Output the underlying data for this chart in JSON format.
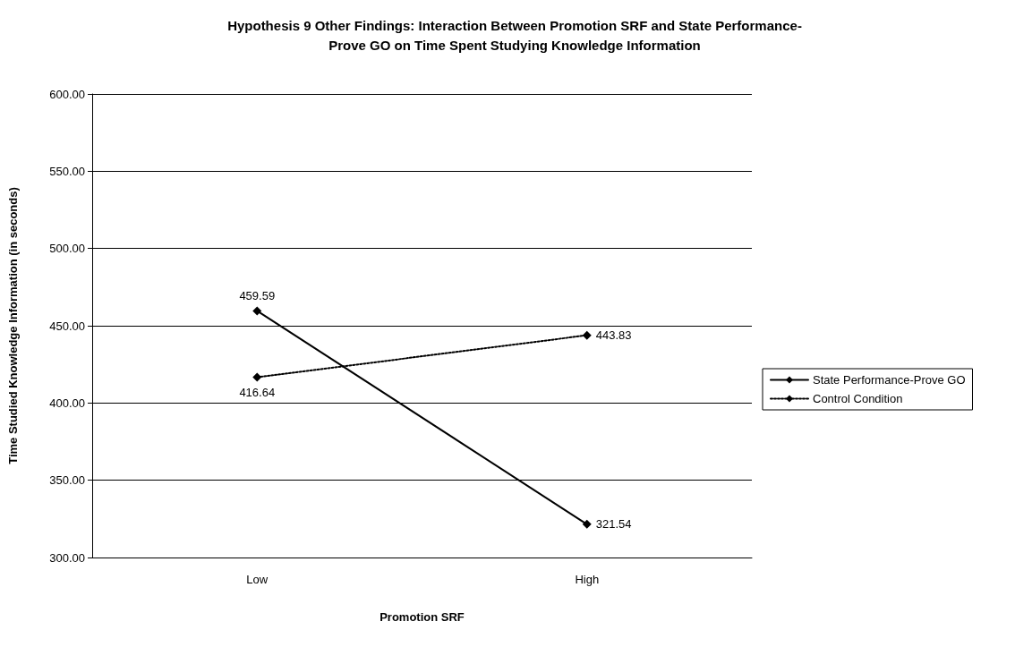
{
  "chart_data": {
    "type": "line",
    "title": "Hypothesis 9 Other Findings: Interaction Between Promotion SRF and State Performance-\nProve GO on Time Spent Studying Knowledge Information",
    "xlabel": "Promotion SRF",
    "ylabel": "Time Studied Knowledge Information (in seconds)",
    "categories": [
      "Low",
      "High"
    ],
    "series": [
      {
        "name": "State Performance-Prove GO",
        "color": "#000000",
        "values": [
          459.59,
          321.54
        ],
        "line_style": "solid"
      },
      {
        "name": "Control Condition",
        "color": "#000000",
        "values": [
          416.64,
          443.83
        ],
        "line_style": "dotted"
      }
    ],
    "ylim": [
      300,
      600
    ],
    "yticks": [
      {
        "value": 300,
        "label": "300.00"
      },
      {
        "value": 350,
        "label": "350.00"
      },
      {
        "value": 400,
        "label": "400.00"
      },
      {
        "value": 450,
        "label": "450.00"
      },
      {
        "value": 500,
        "label": "500.00"
      },
      {
        "value": 550,
        "label": "550.00"
      },
      {
        "value": 600,
        "label": "600.00"
      }
    ],
    "grid": "y",
    "legend": "right",
    "marker": "diamond",
    "data_labels": true
  }
}
